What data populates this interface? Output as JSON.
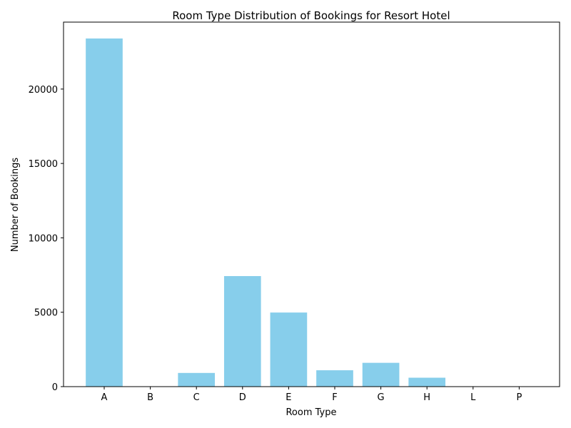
{
  "chart_data": {
    "type": "bar",
    "title": "Room Type Distribution of Bookings for Resort Hotel",
    "xlabel": "Room Type",
    "ylabel": "Number of Bookings",
    "categories": [
      "A",
      "B",
      "C",
      "D",
      "E",
      "F",
      "G",
      "H",
      "L",
      "P"
    ],
    "values": [
      23400,
      2,
      920,
      7430,
      4980,
      1100,
      1600,
      600,
      0,
      0
    ],
    "ylim": [
      0,
      24500
    ],
    "yticks": [
      0,
      5000,
      10000,
      15000,
      20000
    ],
    "bar_color": "#87ceeb",
    "grid": false,
    "legend": "none"
  }
}
